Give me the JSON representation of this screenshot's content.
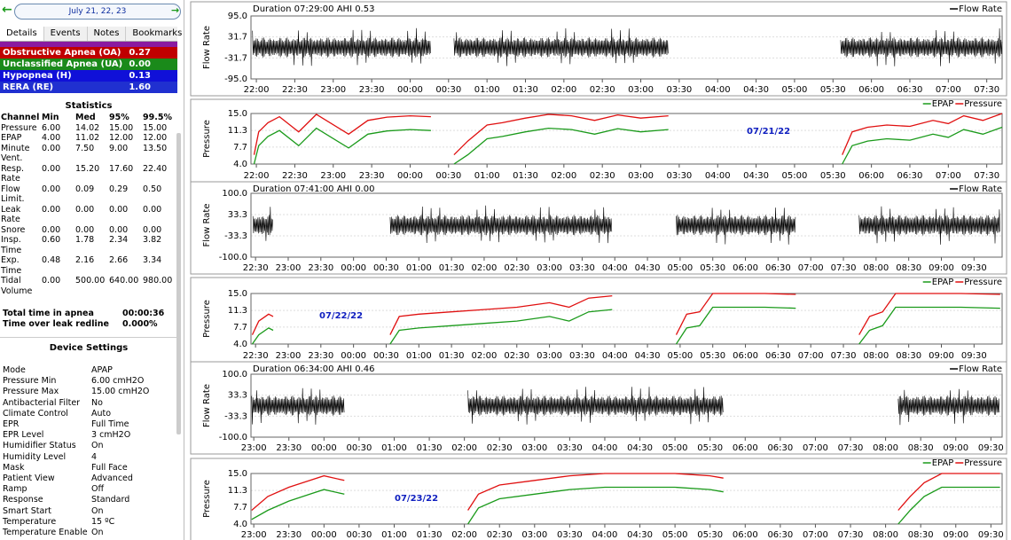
{
  "sidebar": {
    "date": "July 21, 22, 23",
    "tabs": [
      "Details",
      "Events",
      "Notes",
      "Bookmarks"
    ],
    "events": [
      {
        "name": "Obstructive Apnea (OA)",
        "value": "0.27",
        "color": "#c00000"
      },
      {
        "name": "Unclassified Apnea (UA)",
        "value": "0.00",
        "color": "#1a8a1a"
      },
      {
        "name": "Hypopnea (H)",
        "value": "0.13",
        "color": "#1010d8"
      },
      {
        "name": "RERA (RE)",
        "value": "1.60",
        "color": "#2030d0"
      }
    ],
    "statistics_title": "Statistics",
    "statistics": {
      "columns": [
        "Channel",
        "Min",
        "Med",
        "95%",
        "99.5%"
      ],
      "rows": [
        [
          "Pressure",
          "6.00",
          "14.02",
          "15.00",
          "15.00"
        ],
        [
          "EPAP",
          "4.00",
          "11.02",
          "12.00",
          "12.00"
        ],
        [
          "Minute Vent.",
          "0.00",
          "7.50",
          "9.00",
          "13.50"
        ],
        [
          "Resp. Rate",
          "0.00",
          "15.20",
          "17.60",
          "22.40"
        ],
        [
          "Flow Limit.",
          "0.00",
          "0.09",
          "0.29",
          "0.50"
        ],
        [
          "Leak Rate",
          "0.00",
          "0.00",
          "0.00",
          "0.00"
        ],
        [
          "Snore",
          "0.00",
          "0.00",
          "0.00",
          "0.00"
        ],
        [
          "Insp. Time",
          "0.60",
          "1.78",
          "2.34",
          "3.82"
        ],
        [
          "Exp. Time",
          "0.48",
          "2.16",
          "2.66",
          "3.34"
        ],
        [
          "Tidal Volume",
          "0.00",
          "500.00",
          "640.00",
          "980.00"
        ]
      ]
    },
    "totals": [
      [
        "Total time in apnea",
        "00:00:36"
      ],
      [
        "Time over leak redline",
        "0.000%"
      ]
    ],
    "device_title": "Device Settings",
    "device_settings": [
      [
        "Mode",
        "APAP"
      ],
      [
        "Pressure Min",
        "6.00 cmH2O"
      ],
      [
        "Pressure Max",
        "15.00 cmH2O"
      ],
      [
        "Antibacterial Filter",
        "No"
      ],
      [
        "Climate Control",
        "Auto"
      ],
      [
        "EPR",
        "Full Time"
      ],
      [
        "EPR Level",
        "3 cmH2O"
      ],
      [
        "Humidifier Status",
        "On"
      ],
      [
        "Humidity Level",
        "4"
      ],
      [
        "Mask",
        "Full Face"
      ],
      [
        "Patient View",
        "Advanced"
      ],
      [
        "Ramp",
        "Off"
      ],
      [
        "Response",
        "Standard"
      ],
      [
        "Smart Start",
        "On"
      ],
      [
        "Temperature",
        "15 ºC"
      ],
      [
        "Temperature Enable",
        "On"
      ]
    ]
  },
  "nights": [
    {
      "xlim": [
        21.93,
        31.7
      ],
      "xticks": [
        {
          "value": 22,
          "label": "22:00"
        },
        {
          "value": 22.5,
          "label": "22:30"
        },
        {
          "value": 23,
          "label": "23:00"
        },
        {
          "value": 23.5,
          "label": "23:30"
        },
        {
          "value": 24,
          "label": "00:00"
        },
        {
          "value": 24.5,
          "label": "00:30"
        },
        {
          "value": 25,
          "label": "01:00"
        },
        {
          "value": 25.5,
          "label": "01:30"
        },
        {
          "value": 26,
          "label": "02:00"
        },
        {
          "value": 26.5,
          "label": "02:30"
        },
        {
          "value": 27,
          "label": "03:00"
        },
        {
          "value": 27.5,
          "label": "03:30"
        },
        {
          "value": 28,
          "label": "04:00"
        },
        {
          "value": 28.5,
          "label": "04:30"
        },
        {
          "value": 29,
          "label": "05:00"
        },
        {
          "value": 29.5,
          "label": "05:30"
        },
        {
          "value": 30,
          "label": "06:00"
        },
        {
          "value": 30.5,
          "label": "06:30"
        },
        {
          "value": 31,
          "label": "07:00"
        },
        {
          "value": 31.5,
          "label": "07:30"
        }
      ],
      "flow": {
        "type": "waveform",
        "header": "Duration 07:29:00 AHI 0.53",
        "ylabel": "Flow Rate",
        "series_name": "Flow Rate",
        "color": "#000000",
        "ylim": [
          -95,
          95
        ],
        "yticks": [
          {
            "value": 95,
            "label": "95.0"
          },
          31.7,
          -31.7,
          {
            "value": -95,
            "label": "-95.0"
          }
        ],
        "sessions": [
          [
            21.95,
            24.27
          ],
          [
            24.57,
            27.36
          ],
          [
            29.6,
            31.7
          ]
        ]
      },
      "pressure": {
        "type": "line",
        "ylabel": "Pressure",
        "annotation": "07/21/22",
        "ylim": [
          4,
          15
        ],
        "yticks": [
          {
            "value": 15,
            "label": "15.0"
          },
          11.3,
          7.7,
          {
            "value": 4,
            "label": "4.0"
          }
        ],
        "x": [
          21.97,
          22.03,
          22.15,
          22.3,
          22.55,
          22.78,
          23.2,
          23.45,
          23.7,
          24.0,
          24.27,
          24.4,
          24.57,
          24.75,
          25.0,
          25.2,
          25.5,
          25.8,
          26.1,
          26.4,
          26.7,
          27.0,
          27.36,
          28.5,
          29.62,
          29.75,
          29.95,
          30.2,
          30.5,
          30.8,
          31.0,
          31.2,
          31.45,
          31.7
        ],
        "series": [
          {
            "name": "EPAP",
            "color": "#1a9a1a",
            "values": [
              4,
              8,
              10,
              11.3,
              8,
              11.8,
              7.5,
              10.5,
              11.2,
              11.5,
              11.3,
              null,
              4,
              6,
              9.5,
              10,
              11,
              11.8,
              11.5,
              10.5,
              11.7,
              11,
              11.5,
              null,
              4,
              8,
              9,
              9.5,
              9.2,
              10.5,
              9.8,
              11.5,
              10.5,
              12
            ]
          },
          {
            "name": "Pressure",
            "color": "#e01010",
            "values": [
              6,
              11,
              13,
              14.3,
              11,
              14.8,
              10.5,
              13.5,
              14.2,
              14.5,
              14.3,
              null,
              6,
              9,
              12.5,
              13,
              14,
              14.8,
              14.5,
              13.5,
              14.7,
              14,
              14.5,
              null,
              6,
              11,
              12,
              12.5,
              12.2,
              13.5,
              12.8,
              14.5,
              13.5,
              15
            ]
          }
        ]
      }
    },
    {
      "xlim": [
        22.43,
        33.93
      ],
      "xticks": [
        {
          "value": 22.5,
          "label": "22:30"
        },
        {
          "value": 23,
          "label": "23:00"
        },
        {
          "value": 23.5,
          "label": "23:30"
        },
        {
          "value": 24,
          "label": "00:00"
        },
        {
          "value": 24.5,
          "label": "00:30"
        },
        {
          "value": 25,
          "label": "01:00"
        },
        {
          "value": 25.5,
          "label": "01:30"
        },
        {
          "value": 26,
          "label": "02:00"
        },
        {
          "value": 26.5,
          "label": "02:30"
        },
        {
          "value": 27,
          "label": "03:00"
        },
        {
          "value": 27.5,
          "label": "03:30"
        },
        {
          "value": 28,
          "label": "04:00"
        },
        {
          "value": 28.5,
          "label": "04:30"
        },
        {
          "value": 29,
          "label": "05:00"
        },
        {
          "value": 29.5,
          "label": "05:30"
        },
        {
          "value": 30,
          "label": "06:00"
        },
        {
          "value": 30.5,
          "label": "06:30"
        },
        {
          "value": 31,
          "label": "07:00"
        },
        {
          "value": 31.5,
          "label": "07:30"
        },
        {
          "value": 32,
          "label": "08:00"
        },
        {
          "value": 32.5,
          "label": "08:30"
        },
        {
          "value": 33,
          "label": "09:00"
        },
        {
          "value": 33.5,
          "label": "09:30"
        }
      ],
      "flow": {
        "type": "waveform",
        "header": "Duration 07:41:00 AHI 0.00",
        "ylabel": "Flow Rate",
        "series_name": "Flow Rate",
        "color": "#000000",
        "ylim": [
          -100,
          100
        ],
        "yticks": [
          {
            "value": 100,
            "label": "100.0"
          },
          33.3,
          -33.3,
          {
            "value": -100,
            "label": "-100.0"
          }
        ],
        "sessions": [
          [
            22.46,
            22.77
          ],
          [
            24.56,
            27.96
          ],
          [
            28.94,
            30.77
          ],
          [
            31.74,
            33.9
          ]
        ]
      },
      "pressure": {
        "type": "line",
        "ylabel": "Pressure",
        "annotation": "07/22/22",
        "ylim": [
          4,
          15
        ],
        "yticks": [
          {
            "value": 15,
            "label": "15.0"
          },
          11.3,
          7.7,
          {
            "value": 4,
            "label": "4.0"
          }
        ],
        "x": [
          22.45,
          22.55,
          22.7,
          22.77,
          23.5,
          24.56,
          24.7,
          25.0,
          25.5,
          26.0,
          26.5,
          27.0,
          27.3,
          27.6,
          27.96,
          28.5,
          28.94,
          29.1,
          29.3,
          29.5,
          29.9,
          30.3,
          30.77,
          31.2,
          31.74,
          31.9,
          32.1,
          32.3,
          32.8,
          33.3,
          33.9
        ],
        "series": [
          {
            "name": "EPAP",
            "color": "#1a9a1a",
            "values": [
              4,
              6,
              7.5,
              7,
              null,
              4,
              7,
              7.5,
              8,
              8.5,
              9,
              10,
              9,
              11,
              11.5,
              null,
              4,
              7.5,
              8,
              12,
              12,
              12,
              11.8,
              null,
              4,
              7,
              8,
              12,
              12,
              12,
              11.8
            ]
          },
          {
            "name": "Pressure",
            "color": "#e01010",
            "values": [
              6,
              9,
              10.5,
              10,
              null,
              6,
              10,
              10.5,
              11,
              11.5,
              12,
              13,
              12,
              14,
              14.5,
              null,
              6,
              10.5,
              11,
              15,
              15,
              15,
              14.8,
              null,
              6,
              10,
              11,
              15,
              15,
              15,
              14.8
            ]
          }
        ]
      }
    },
    {
      "xlim": [
        22.96,
        33.66
      ],
      "xticks": [
        {
          "value": 23,
          "label": "23:00"
        },
        {
          "value": 23.5,
          "label": "23:30"
        },
        {
          "value": 24,
          "label": "00:00"
        },
        {
          "value": 24.5,
          "label": "00:30"
        },
        {
          "value": 25,
          "label": "01:00"
        },
        {
          "value": 25.5,
          "label": "01:30"
        },
        {
          "value": 26,
          "label": "02:00"
        },
        {
          "value": 26.5,
          "label": "02:30"
        },
        {
          "value": 27,
          "label": "03:00"
        },
        {
          "value": 27.5,
          "label": "03:30"
        },
        {
          "value": 28,
          "label": "04:00"
        },
        {
          "value": 28.5,
          "label": "04:30"
        },
        {
          "value": 29,
          "label": "05:00"
        },
        {
          "value": 29.5,
          "label": "05:30"
        },
        {
          "value": 30,
          "label": "06:00"
        },
        {
          "value": 30.5,
          "label": "06:30"
        },
        {
          "value": 31,
          "label": "07:00"
        },
        {
          "value": 31.5,
          "label": "07:30"
        },
        {
          "value": 32,
          "label": "08:00"
        },
        {
          "value": 32.5,
          "label": "08:30"
        },
        {
          "value": 33,
          "label": "09:00"
        },
        {
          "value": 33.5,
          "label": "09:30"
        }
      ],
      "flow": {
        "type": "waveform",
        "header": "Duration 06:34:00 AHI 0.46",
        "ylabel": "Flow Rate",
        "series_name": "Flow Rate",
        "color": "#000000",
        "ylim": [
          -100,
          100
        ],
        "yticks": [
          {
            "value": 100,
            "label": "100.0"
          },
          33.3,
          -33.3,
          {
            "value": -100,
            "label": "-100.0"
          }
        ],
        "sessions": [
          [
            22.97,
            24.29
          ],
          [
            26.05,
            29.69
          ],
          [
            32.18,
            33.63
          ]
        ]
      },
      "pressure": {
        "type": "line",
        "ylabel": "Pressure",
        "annotation": "07/23/22",
        "ylim": [
          4,
          15
        ],
        "yticks": [
          {
            "value": 15,
            "label": "15.0"
          },
          11.3,
          7.7,
          {
            "value": 4,
            "label": "4.0"
          }
        ],
        "x": [
          22.97,
          23.2,
          23.5,
          23.8,
          24.0,
          24.29,
          25.0,
          26.05,
          26.2,
          26.5,
          27.0,
          27.5,
          28.0,
          28.5,
          29.0,
          29.5,
          29.69,
          31.0,
          32.18,
          32.35,
          32.55,
          32.8,
          33.2,
          33.63
        ],
        "series": [
          {
            "name": "EPAP",
            "color": "#1a9a1a",
            "values": [
              5,
              7,
              9,
              10.5,
              11.5,
              10.5,
              null,
              4,
              7.5,
              9.5,
              10.5,
              11.5,
              12,
              12,
              12,
              11.5,
              11,
              null,
              4,
              7,
              10,
              12,
              12,
              12
            ]
          },
          {
            "name": "Pressure",
            "color": "#e01010",
            "values": [
              7,
              10,
              12,
              13.5,
              14.5,
              13.5,
              null,
              7,
              10.5,
              12.5,
              13.5,
              14.5,
              15,
              15,
              15,
              14.5,
              14,
              null,
              7,
              10,
              13,
              15,
              15,
              15
            ]
          }
        ]
      }
    }
  ]
}
